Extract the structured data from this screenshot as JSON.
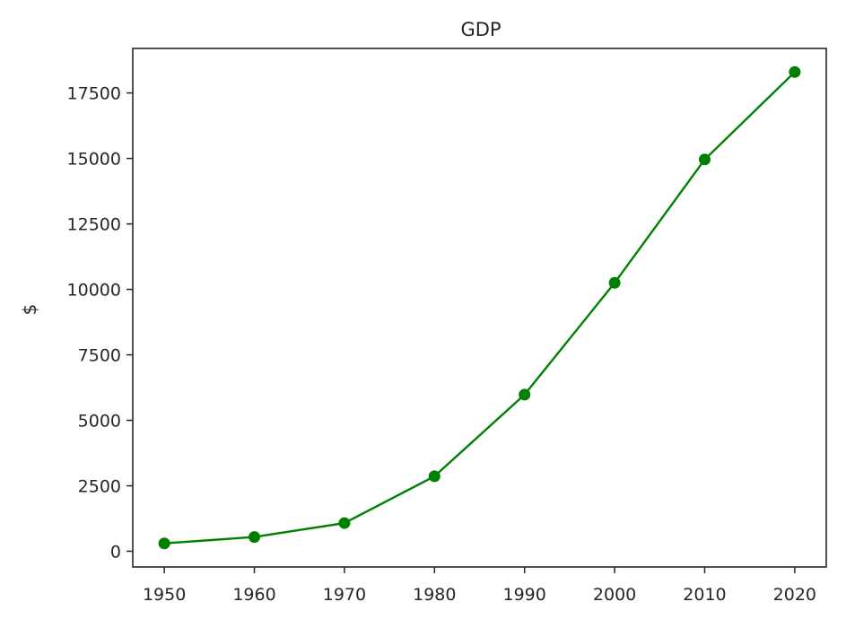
{
  "chart_data": {
    "type": "line",
    "title": "GDP",
    "xlabel": "",
    "ylabel": "$",
    "x": [
      1950,
      1960,
      1970,
      1980,
      1990,
      2000,
      2010,
      2020
    ],
    "series": [
      {
        "values": [
          300,
          543,
          1076,
          2863,
          5980,
          10250,
          14960,
          18300
        ],
        "color": "#008000",
        "marker": "circle"
      }
    ],
    "xticks": [
      "1950",
      "1960",
      "1970",
      "1980",
      "1990",
      "2000",
      "2010",
      "2020"
    ],
    "yticks": [
      "0",
      "2500",
      "5000",
      "7500",
      "10000",
      "12500",
      "15000",
      "17500"
    ],
    "xlim": [
      1946.5,
      2023.5
    ],
    "ylim": [
      -600,
      19200
    ],
    "grid": false,
    "legend": "none"
  }
}
